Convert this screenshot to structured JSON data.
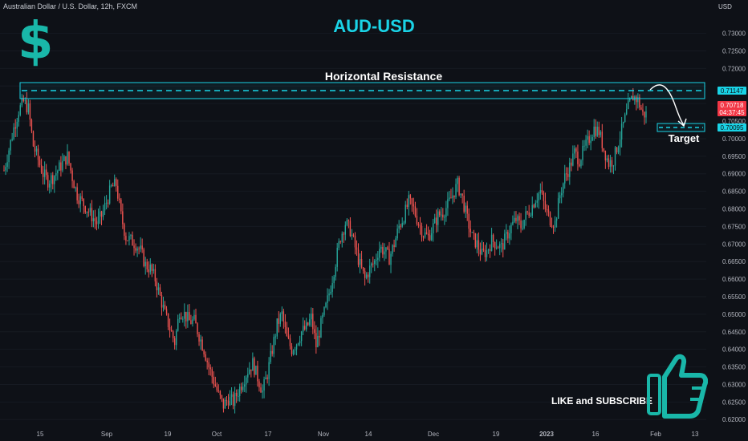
{
  "header": {
    "symbol_line": "Australian Dollar / U.S. Dollar, 12h, FXCM"
  },
  "title": "AUD-USD",
  "like_text": "LIKE and SUBSCRIBE",
  "colors": {
    "bull": "#26a69a",
    "bear": "#ef5350",
    "cyan": "#19d3e6",
    "bg": "#0e1117",
    "price_tag": "#f23645"
  },
  "icons": [
    "dollar-sign-icon",
    "thumbs-up-icon"
  ],
  "chart_data": {
    "type": "candlestick",
    "title": "AUD-USD",
    "currency_label": "USD",
    "ylim": [
      0.618,
      0.7395
    ],
    "y_ticks": [
      0.73,
      0.725,
      0.72,
      0.715,
      0.71,
      0.705,
      0.7,
      0.695,
      0.69,
      0.685,
      0.68,
      0.675,
      0.67,
      0.665,
      0.66,
      0.655,
      0.65,
      0.645,
      0.64,
      0.635,
      0.63,
      0.625,
      0.62
    ],
    "x_ticks": [
      "15",
      "Sep",
      "19",
      "Oct",
      "17",
      "Nov",
      "14",
      "Dec",
      "19",
      "2023",
      "16",
      "Feb",
      "13"
    ],
    "annotations": {
      "resistance_label": "Horizontal Resistance",
      "resistance_value": "0.71147",
      "current_price": "0.70718",
      "countdown": "04:37:45",
      "target_label": "Target",
      "target_value": "0.70095"
    },
    "close_path": [
      0.691,
      0.697,
      0.703,
      0.708,
      0.7105,
      0.7085,
      0.698,
      0.694,
      0.69,
      0.688,
      0.689,
      0.691,
      0.693,
      0.695,
      0.689,
      0.684,
      0.682,
      0.68,
      0.678,
      0.676,
      0.678,
      0.682,
      0.686,
      0.687,
      0.678,
      0.672,
      0.671,
      0.67,
      0.668,
      0.664,
      0.663,
      0.66,
      0.655,
      0.65,
      0.646,
      0.642,
      0.651,
      0.65,
      0.648,
      0.648,
      0.644,
      0.64,
      0.635,
      0.631,
      0.627,
      0.624,
      0.626,
      0.625,
      0.628,
      0.631,
      0.634,
      0.636,
      0.632,
      0.628,
      0.633,
      0.64,
      0.647,
      0.65,
      0.643,
      0.64,
      0.642,
      0.645,
      0.646,
      0.649,
      0.641,
      0.647,
      0.652,
      0.658,
      0.665,
      0.672,
      0.676,
      0.674,
      0.669,
      0.664,
      0.66,
      0.663,
      0.665,
      0.669,
      0.668,
      0.666,
      0.67,
      0.675,
      0.678,
      0.682,
      0.68,
      0.676,
      0.673,
      0.672,
      0.675,
      0.678,
      0.679,
      0.681,
      0.684,
      0.687,
      0.683,
      0.677,
      0.672,
      0.67,
      0.667,
      0.668,
      0.671,
      0.67,
      0.669,
      0.672,
      0.675,
      0.677,
      0.675,
      0.678,
      0.68,
      0.683,
      0.685,
      0.68,
      0.677,
      0.676,
      0.684,
      0.689,
      0.692,
      0.696,
      0.694,
      0.697,
      0.7,
      0.703,
      0.702,
      0.697,
      0.693,
      0.694,
      0.699,
      0.704,
      0.709,
      0.712,
      0.711,
      0.707
    ]
  }
}
